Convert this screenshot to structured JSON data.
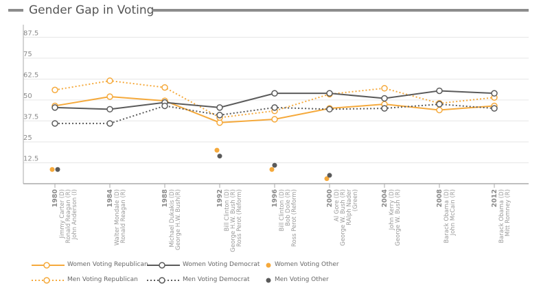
{
  "title": "Gender Gap in Voting",
  "colors": {
    "orange": "#f5a93b",
    "dark": "#5a5a5a",
    "grid": "#e6e6e6",
    "axis": "#aaaaaa"
  },
  "chart_data": {
    "type": "line",
    "title": "Gender Gap in Voting",
    "xlabel": "",
    "ylabel": "",
    "ylim": [
      0,
      95
    ],
    "grid": true,
    "y_ticks": [
      "87.5",
      "75",
      "62.5",
      "50",
      "37.5",
      "25",
      "12.5"
    ],
    "y_tick_values": [
      87.5,
      75,
      62.5,
      50,
      37.5,
      25,
      12.5
    ],
    "categories": [
      "1980",
      "1984",
      "1988",
      "1992",
      "1996",
      "2000",
      "2004",
      "2008",
      "2012"
    ],
    "candidates": [
      [
        "Jimmy Carter (D)",
        "Ronald Reagan (R)",
        "John Anderson (I)"
      ],
      [
        "Walter Mondale (D)",
        "Ronald Reagan (R)"
      ],
      [
        "Michael Dukakis (D)",
        "George H.W. Bush(R)"
      ],
      [
        "Bill Clinton (D)",
        "George H.W. Bush (R)",
        "Ross Perot (Reform)"
      ],
      [
        "Bill Clinton (D)",
        "Bob Dole (R)",
        "Ross Perot (Reform)"
      ],
      [
        "Al Gore (D)",
        "George W. Bush (R)",
        "RAlph Nader",
        "(Green)"
      ],
      [
        "John Kerry (D)",
        "George W. Bush (R)"
      ],
      [
        "Barack Obama (D)",
        "John McCain (R)"
      ],
      [
        "Barack Obama (D)",
        "Mitt Romney (R)"
      ]
    ],
    "series": [
      {
        "name": "Women Voting Republican",
        "style": "solid",
        "color": "#f5a93b",
        "values": [
          46.5,
          52,
          49.5,
          36.5,
          38.5,
          45,
          47.5,
          44,
          46.5
        ]
      },
      {
        "name": "Men Voting Republican",
        "style": "dotted",
        "color": "#f5a93b",
        "values": [
          56,
          61.5,
          57.5,
          39.5,
          43.5,
          53.5,
          57,
          48,
          51.5
        ]
      },
      {
        "name": "Women Voting Democrat",
        "style": "solid",
        "color": "#5a5a5a",
        "values": [
          45.5,
          44.5,
          48.5,
          45.5,
          54,
          54,
          51,
          55.5,
          54
        ]
      },
      {
        "name": "Men Voting Democrat",
        "style": "dotted",
        "color": "#5a5a5a",
        "values": [
          36,
          36,
          46.5,
          41,
          45.5,
          44.5,
          45,
          47.5,
          45
        ]
      },
      {
        "name": "Women Voting Other",
        "style": "dot",
        "color": "#f5a93b",
        "values": [
          8.5,
          null,
          null,
          20,
          8.5,
          3,
          null,
          null,
          null
        ]
      },
      {
        "name": "Men Voting Other",
        "style": "dot",
        "color": "#5a5a5a",
        "values": [
          8.5,
          null,
          null,
          16.5,
          11,
          5,
          null,
          null,
          null
        ]
      }
    ],
    "legend_position": "bottom-left"
  }
}
